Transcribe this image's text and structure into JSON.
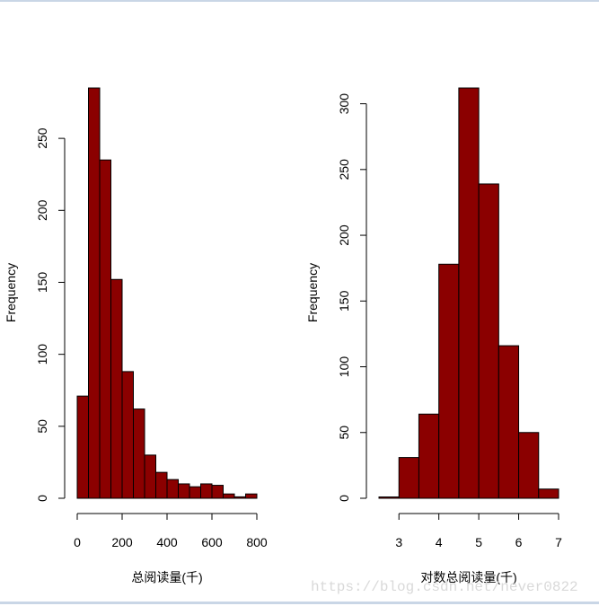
{
  "chart_data": [
    {
      "type": "bar",
      "subtype": "histogram",
      "title": "",
      "xlabel": "总阅读量(千)",
      "ylabel": "Frequency",
      "bin_width": 50,
      "bins": [
        [
          0,
          50
        ],
        [
          50,
          100
        ],
        [
          100,
          150
        ],
        [
          150,
          200
        ],
        [
          200,
          250
        ],
        [
          250,
          300
        ],
        [
          300,
          350
        ],
        [
          350,
          400
        ],
        [
          400,
          450
        ],
        [
          450,
          500
        ],
        [
          500,
          550
        ],
        [
          550,
          600
        ],
        [
          600,
          650
        ],
        [
          650,
          700
        ],
        [
          700,
          750
        ],
        [
          750,
          800
        ]
      ],
      "values": [
        71,
        285,
        235,
        152,
        88,
        62,
        30,
        18,
        13,
        10,
        8,
        10,
        9,
        3,
        1,
        3
      ],
      "xticks": [
        "0",
        "200",
        "400",
        "600",
        "800"
      ],
      "yticks": [
        "0",
        "50",
        "100",
        "150",
        "200",
        "250"
      ],
      "xlim": [
        0,
        800
      ],
      "ylim": [
        0,
        285
      ],
      "bar_color": "#8b0000",
      "grid": false,
      "legend": "none"
    },
    {
      "type": "bar",
      "subtype": "histogram",
      "title": "",
      "xlabel": "对数总阅读量(千)",
      "ylabel": "Frequency",
      "bin_width": 0.5,
      "bins": [
        [
          2.5,
          3.0
        ],
        [
          3.0,
          3.5
        ],
        [
          3.5,
          4.0
        ],
        [
          4.0,
          4.5
        ],
        [
          4.5,
          5.0
        ],
        [
          5.0,
          5.5
        ],
        [
          5.5,
          6.0
        ],
        [
          6.0,
          6.5
        ],
        [
          6.5,
          7.0
        ]
      ],
      "values": [
        1,
        31,
        64,
        178,
        312,
        239,
        116,
        50,
        7
      ],
      "xticks": [
        "3",
        "4",
        "5",
        "6",
        "7"
      ],
      "yticks": [
        "0",
        "50",
        "100",
        "150",
        "200",
        "250",
        "300"
      ],
      "xlim": [
        2.5,
        7
      ],
      "ylim": [
        0,
        312
      ],
      "bar_color": "#8b0000",
      "grid": false,
      "legend": "none"
    }
  ],
  "watermark": "https://blog.csdn.net/never0822"
}
